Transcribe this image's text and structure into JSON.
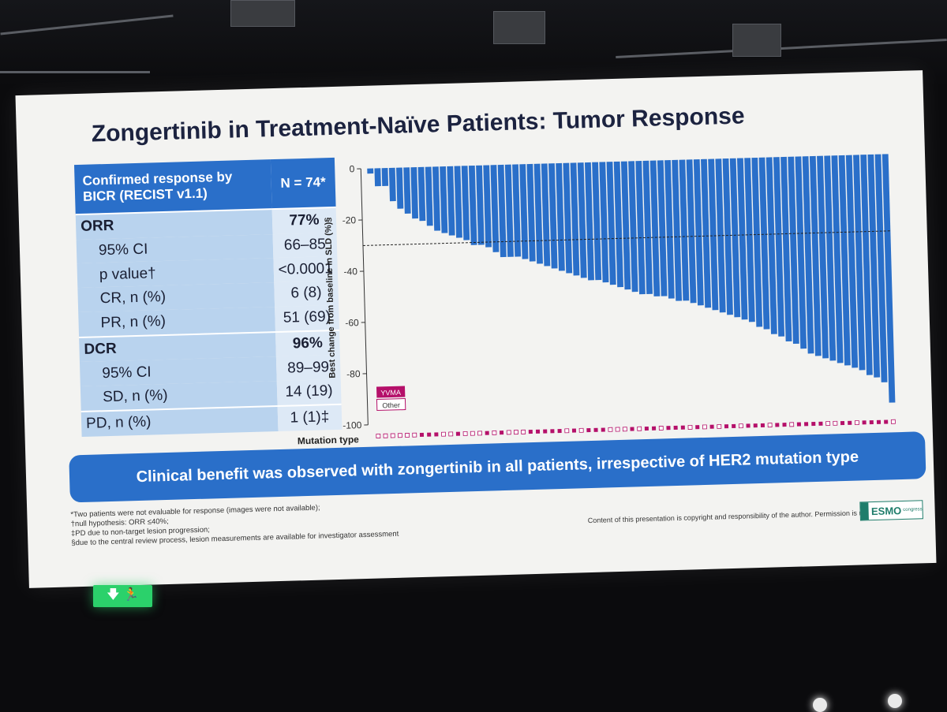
{
  "slide": {
    "title": "Zongertinib in Treatment-Naïve Patients: Tumor Response",
    "table": {
      "header_left": "Confirmed response by BICR (RECIST v1.1)",
      "header_right": "N = 74*",
      "rows": [
        {
          "label": "ORR",
          "value": "77%"
        },
        {
          "label": "95% CI",
          "value": "66–85"
        },
        {
          "label": "p value†",
          "value": "<0.0001"
        },
        {
          "label": "CR, n (%)",
          "value": "6 (8)"
        },
        {
          "label": "PR, n (%)",
          "value": "51 (69)"
        },
        {
          "label": "DCR",
          "value": "96%"
        },
        {
          "label": "95% CI",
          "value": "89–99"
        },
        {
          "label": "SD, n (%)",
          "value": "14 (19)"
        },
        {
          "label": "PD, n (%)",
          "value": "1 (1)‡"
        }
      ]
    },
    "banner": "Clinical benefit was observed with zongertinib in all patients, irrespective of HER2 mutation type",
    "footnotes": [
      "*Two patients were not evaluable for response (images were not available);",
      "†null hypothesis: ORR ≤40%;",
      "‡PD due to non-target lesion progression;",
      "§due to the central review process, lesion measurements are available for investigator assessment"
    ],
    "copyright": "Content of this presentation is copyright and responsibility of the author. Permission is required for re-use.",
    "logo": {
      "main": "ESMO",
      "sub": "congress"
    },
    "exit_sign": "🡇 🏃"
  },
  "chart_data": {
    "type": "bar",
    "title": "",
    "ylabel": "Best change from baseline in SLD (%)§",
    "xlabel": "Mutation type",
    "ylim": [
      -100,
      0
    ],
    "yticks": [
      "0",
      "-20",
      "-40",
      "-60",
      "-80",
      "-100"
    ],
    "reference_line": -30,
    "legend": [
      {
        "label": "YVMA",
        "color": "#b5106a"
      },
      {
        "label": "Other",
        "color": "#ffffff"
      }
    ],
    "values": [
      -2,
      -7,
      -7,
      -13,
      -16,
      -18,
      -20,
      -21,
      -23,
      -25,
      -26,
      -27,
      -28,
      -29,
      -31,
      -31,
      -32,
      -34,
      -36,
      -36,
      -36,
      -37,
      -38,
      -39,
      -40,
      -41,
      -42,
      -43,
      -44,
      -45,
      -46,
      -46,
      -47,
      -48,
      -49,
      -50,
      -51,
      -52,
      -52,
      -53,
      -53,
      -54,
      -55,
      -55,
      -56,
      -57,
      -58,
      -59,
      -60,
      -61,
      -62,
      -63,
      -64,
      -66,
      -67,
      -69,
      -70,
      -72,
      -73,
      -75,
      -77,
      -78,
      -79,
      -80,
      -81,
      -82,
      -83,
      -84,
      -86,
      -87,
      -89,
      -97
    ],
    "mutation_types": [
      "O",
      "O",
      "O",
      "O",
      "O",
      "O",
      "Y",
      "Y",
      "Y",
      "O",
      "O",
      "Y",
      "O",
      "O",
      "O",
      "Y",
      "O",
      "Y",
      "O",
      "O",
      "O",
      "Y",
      "Y",
      "Y",
      "Y",
      "Y",
      "O",
      "Y",
      "O",
      "Y",
      "Y",
      "Y",
      "O",
      "O",
      "O",
      "Y",
      "O",
      "Y",
      "Y",
      "O",
      "Y",
      "Y",
      "Y",
      "O",
      "Y",
      "O",
      "Y",
      "O",
      "Y",
      "Y",
      "O",
      "Y",
      "Y",
      "Y",
      "O",
      "Y",
      "Y",
      "O",
      "Y",
      "Y",
      "Y",
      "Y",
      "O",
      "O",
      "Y",
      "Y",
      "O",
      "Y",
      "Y",
      "Y",
      "Y",
      "O"
    ],
    "bar_color": "#2a6fc9"
  }
}
